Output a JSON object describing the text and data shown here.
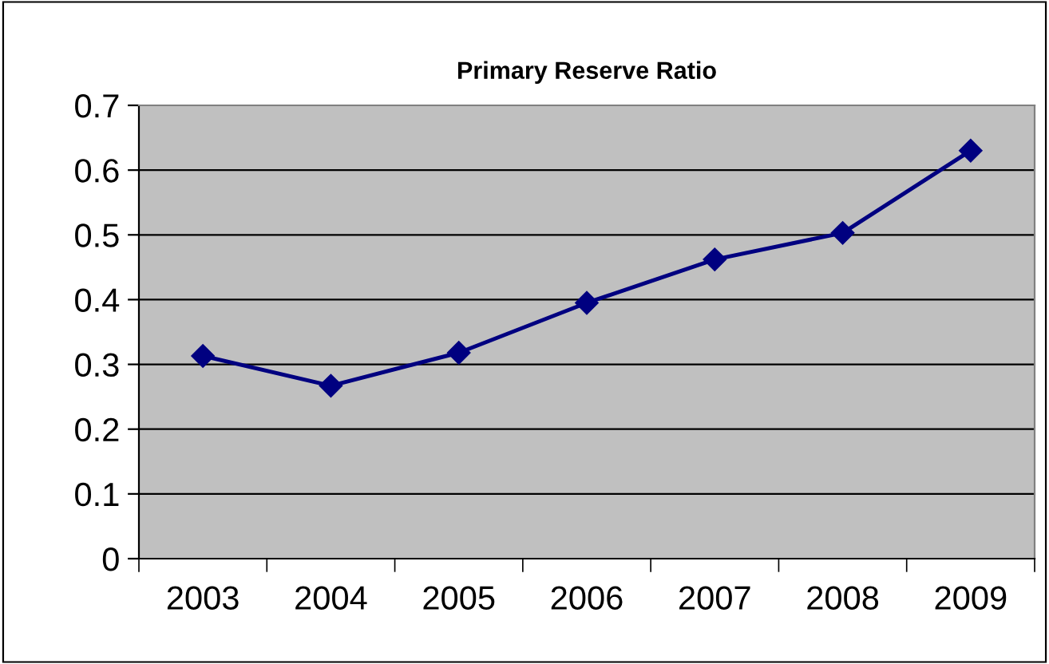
{
  "chart_data": {
    "type": "line",
    "title": "Primary Reserve Ratio",
    "categories": [
      "2003",
      "2004",
      "2005",
      "2006",
      "2007",
      "2008",
      "2009"
    ],
    "series": [
      {
        "color": "#000080",
        "values": [
          0.313,
          0.267,
          0.318,
          0.395,
          0.462,
          0.503,
          0.63
        ]
      }
    ],
    "ylim": [
      0,
      0.7
    ],
    "yticks": [
      0,
      0.1,
      0.2,
      0.3,
      0.4,
      0.5,
      0.6,
      0.7
    ],
    "grid": "y",
    "legend": false,
    "marker": "diamond",
    "line_style": "solid"
  }
}
